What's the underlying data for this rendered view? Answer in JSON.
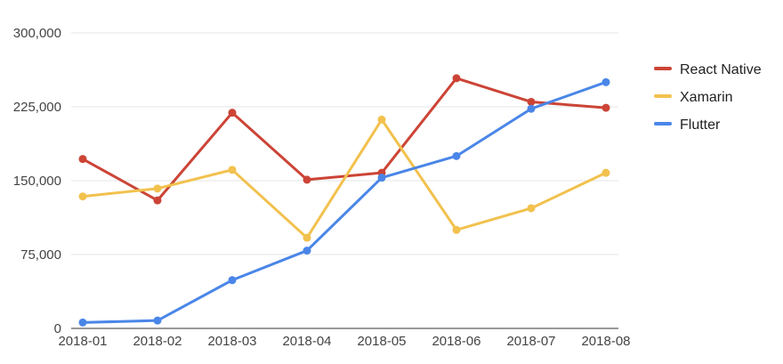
{
  "chart_data": {
    "type": "line",
    "title": "",
    "xlabel": "",
    "ylabel": "",
    "categories": [
      "2018-01",
      "2018-02",
      "2018-03",
      "2018-04",
      "2018-05",
      "2018-06",
      "2018-07",
      "2018-08"
    ],
    "ylim": [
      0,
      300000
    ],
    "yticks": [
      0,
      75000,
      150000,
      225000,
      300000
    ],
    "ytick_labels": [
      "0",
      "75,000",
      "150,000",
      "225,000",
      "300,000"
    ],
    "grid": true,
    "legend_position": "right",
    "series": [
      {
        "name": "React Native",
        "color": "#cc4436",
        "values": [
          172000,
          130000,
          219000,
          151000,
          158000,
          254000,
          230000,
          224000
        ]
      },
      {
        "name": "Xamarin",
        "color": "#f2c14e",
        "values": [
          134000,
          142000,
          161000,
          92000,
          212000,
          100000,
          122000,
          158000
        ]
      },
      {
        "name": "Flutter",
        "color": "#4a86e8",
        "values": [
          6000,
          8000,
          49000,
          79000,
          153000,
          175000,
          223000,
          250000
        ]
      }
    ]
  }
}
